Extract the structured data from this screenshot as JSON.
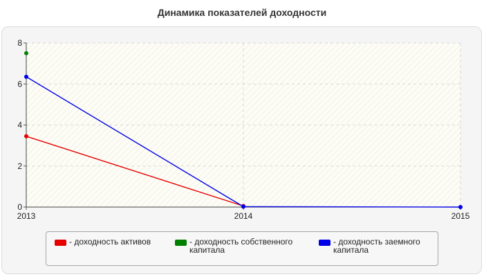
{
  "chart_data": {
    "type": "line",
    "title": "Динамика показателей доходности",
    "xlabel": "",
    "ylabel": "",
    "x": [
      "2013",
      "2014",
      "2015"
    ],
    "xlim": [
      2013,
      2015
    ],
    "ylim": [
      0,
      8
    ],
    "yticks": [
      "0",
      "2",
      "4",
      "6",
      "8"
    ],
    "grid": true,
    "legend_position": "bottom",
    "series": [
      {
        "name": "- доходность активов",
        "color": "#e60000",
        "values": [
          3.45,
          0.05,
          null
        ]
      },
      {
        "name": "- доходность собственного капитала",
        "color": "#008000",
        "values": [
          7.5,
          null,
          null
        ]
      },
      {
        "name": "- доходность заемного капитала",
        "color": "#0000e6",
        "values": [
          6.35,
          0.02,
          0.0
        ]
      }
    ]
  }
}
